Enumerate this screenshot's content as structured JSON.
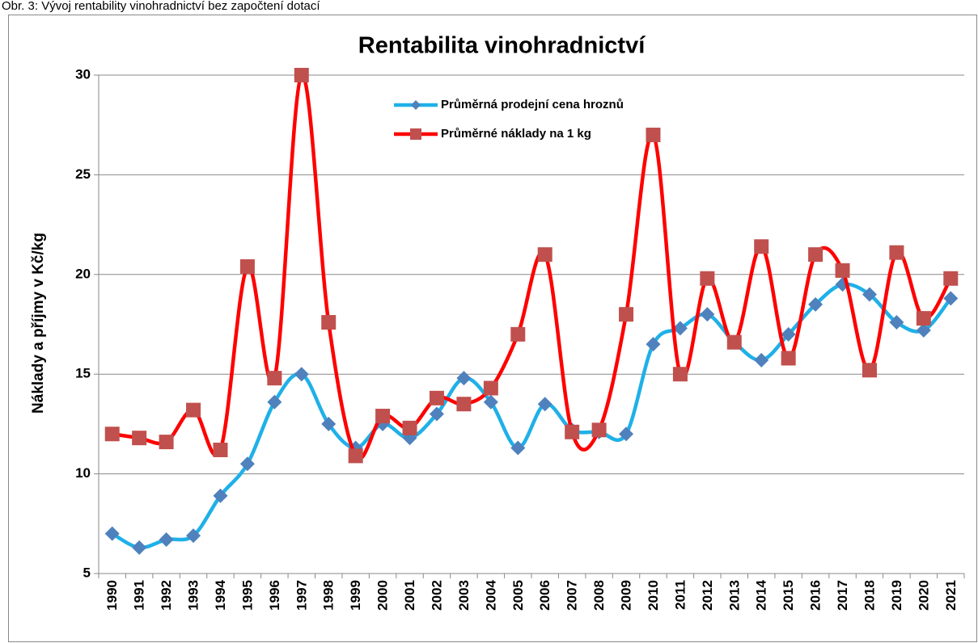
{
  "caption": "Obr. 3: Vývoj rentability vinohradnictví bez započtení dotací",
  "chart_data": {
    "type": "line",
    "title": "Rentabilita vinohradnictví",
    "ylabel": "Náklady a příjmy v Kč/kg",
    "categories": [
      "1990",
      "1991",
      "1992",
      "1993",
      "1994",
      "1995",
      "1996",
      "1997",
      "1998",
      "1999",
      "2000",
      "2001",
      "2002",
      "2003",
      "2004",
      "2005",
      "2006",
      "2007",
      "2008",
      "2009",
      "2010",
      "2011",
      "2012",
      "2013",
      "2014",
      "2015",
      "2016",
      "2017",
      "2018",
      "2019",
      "2020",
      "2021"
    ],
    "series": [
      {
        "name": "Průměrná prodejní cena hroznů",
        "color": "#1fb0e8",
        "marker_color": "#4f81bd",
        "marker": "diamond",
        "values": [
          7.0,
          6.3,
          6.7,
          6.9,
          8.9,
          10.5,
          13.6,
          15.0,
          12.5,
          11.3,
          12.5,
          11.8,
          13.0,
          14.8,
          13.6,
          11.3,
          13.5,
          12.2,
          12.1,
          12.0,
          16.5,
          17.3,
          18.0,
          16.6,
          15.7,
          17.0,
          18.5,
          19.5,
          19.0,
          17.6,
          17.2,
          18.8
        ]
      },
      {
        "name": "Průměrné náklady na 1 kg",
        "color": "#ff0000",
        "marker_color": "#c0504d",
        "marker": "square",
        "values": [
          12.0,
          11.8,
          11.6,
          13.2,
          11.2,
          20.4,
          14.8,
          30.0,
          17.6,
          10.9,
          12.9,
          12.3,
          13.8,
          13.5,
          14.3,
          17.0,
          21.0,
          12.1,
          12.2,
          18.0,
          27.0,
          15.0,
          19.8,
          16.6,
          21.4,
          15.8,
          21.0,
          20.2,
          15.2,
          21.1,
          17.8,
          19.8
        ]
      }
    ],
    "ylim": [
      5,
      30
    ],
    "yticks": [
      5,
      10,
      15,
      20,
      25,
      30
    ],
    "grid": true,
    "smooth": true
  }
}
